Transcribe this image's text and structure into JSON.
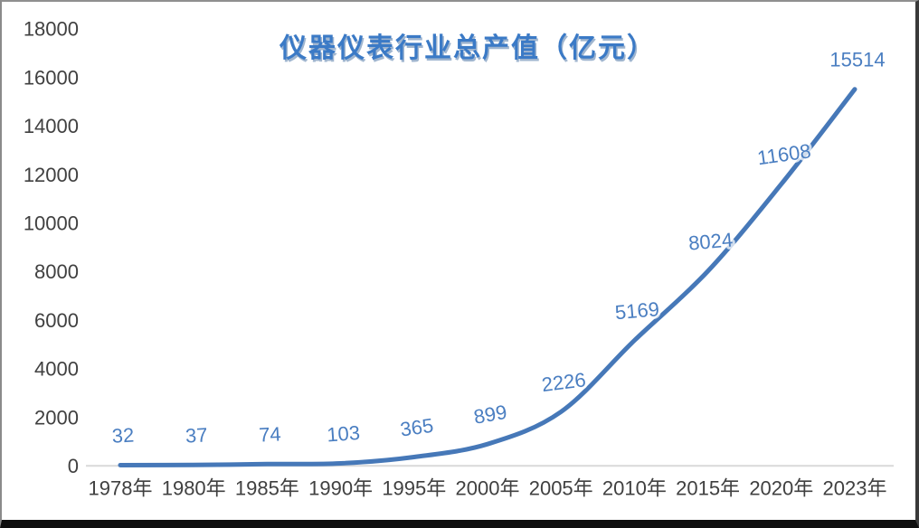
{
  "chart_data": {
    "type": "line",
    "title": "仪器仪表行业总产值（亿元）",
    "categories": [
      "1978年",
      "1980年",
      "1985年",
      "1990年",
      "1995年",
      "2000年",
      "2005年",
      "2010年",
      "2015年",
      "2020年",
      "2023年"
    ],
    "values": [
      32,
      37,
      74,
      103,
      365,
      899,
      2226,
      5169,
      8024,
      11608,
      15514
    ],
    "series_name": "仪器仪表行业总产值",
    "xlabel": "",
    "ylabel": "",
    "ylim": [
      0,
      18000
    ],
    "ytick_step": 2000,
    "ytick_labels": [
      "0",
      "2000",
      "4000",
      "6000",
      "8000",
      "10000",
      "12000",
      "14000",
      "16000",
      "18000"
    ],
    "data_labels": [
      "32",
      "37",
      "74",
      "103",
      "365",
      "899",
      "2226",
      "5169",
      "8024",
      "11608",
      "15514"
    ],
    "grid": "off",
    "legend": "none",
    "line_style": "smooth",
    "markers": "none",
    "colors": {
      "line": "#4678B8",
      "data_label": "#4A7EC1",
      "tick_label": "#404040",
      "title": "#3B7AC6",
      "axis_line": "#D9D9D9"
    }
  }
}
